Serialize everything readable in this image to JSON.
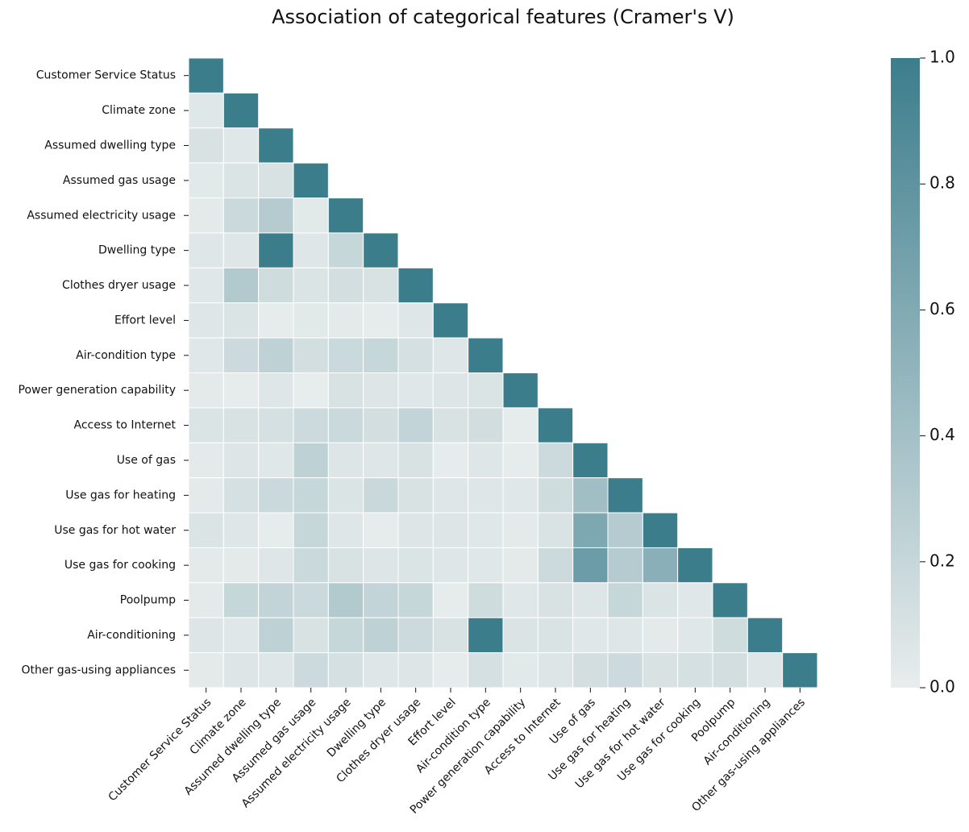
{
  "chart_data": {
    "type": "heatmap",
    "title": "Association of categorical features (Cramer's V)",
    "labels": [
      "Customer Service Status",
      "Climate zone",
      "Assumed dwelling type",
      "Assumed gas usage",
      "Assumed electricity usage",
      "Dwelling type",
      "Clothes dryer usage",
      "Effort level",
      "Air-condition type",
      "Power generation capability",
      "Access to Internet",
      "Use of gas",
      "Use gas for heating",
      "Use gas for hot water",
      "Use gas for cooking",
      "Poolpump",
      "Air-conditioning",
      "Other gas-using appliances"
    ],
    "matrix": [
      [
        1,
        null,
        null,
        null,
        null,
        null,
        null,
        null,
        null,
        null,
        null,
        null,
        null,
        null,
        null,
        null,
        null,
        null
      ],
      [
        0.05,
        1,
        null,
        null,
        null,
        null,
        null,
        null,
        null,
        null,
        null,
        null,
        null,
        null,
        null,
        null,
        null,
        null
      ],
      [
        0.1,
        0.05,
        1,
        null,
        null,
        null,
        null,
        null,
        null,
        null,
        null,
        null,
        null,
        null,
        null,
        null,
        null,
        null
      ],
      [
        0.04,
        0.08,
        0.1,
        1,
        null,
        null,
        null,
        null,
        null,
        null,
        null,
        null,
        null,
        null,
        null,
        null,
        null,
        null
      ],
      [
        0.03,
        0.18,
        0.3,
        0.04,
        1,
        null,
        null,
        null,
        null,
        null,
        null,
        null,
        null,
        null,
        null,
        null,
        null,
        null
      ],
      [
        0.06,
        0.06,
        1,
        0.06,
        0.2,
        1,
        null,
        null,
        null,
        null,
        null,
        null,
        null,
        null,
        null,
        null,
        null,
        null
      ],
      [
        0.05,
        0.32,
        0.15,
        0.08,
        0.13,
        0.1,
        1,
        null,
        null,
        null,
        null,
        null,
        null,
        null,
        null,
        null,
        null,
        null
      ],
      [
        0.06,
        0.08,
        0.02,
        0.04,
        0.03,
        0.02,
        0.06,
        1,
        null,
        null,
        null,
        null,
        null,
        null,
        null,
        null,
        null,
        null
      ],
      [
        0.05,
        0.17,
        0.25,
        0.13,
        0.18,
        0.2,
        0.12,
        0.06,
        1,
        null,
        null,
        null,
        null,
        null,
        null,
        null,
        null,
        null
      ],
      [
        0.03,
        0.02,
        0.06,
        0.01,
        0.1,
        0.07,
        0.05,
        0.07,
        0.08,
        1,
        null,
        null,
        null,
        null,
        null,
        null,
        null,
        null
      ],
      [
        0.08,
        0.1,
        0.12,
        0.17,
        0.18,
        0.13,
        0.22,
        0.1,
        0.14,
        0.02,
        1,
        null,
        null,
        null,
        null,
        null,
        null,
        null
      ],
      [
        0.03,
        0.07,
        0.05,
        0.25,
        0.07,
        0.06,
        0.1,
        0.02,
        0.06,
        0.02,
        0.17,
        1,
        null,
        null,
        null,
        null,
        null,
        null
      ],
      [
        0.03,
        0.12,
        0.18,
        0.2,
        0.08,
        0.19,
        0.1,
        0.06,
        0.06,
        0.05,
        0.15,
        0.42,
        1,
        null,
        null,
        null,
        null,
        null
      ],
      [
        0.08,
        0.06,
        0.02,
        0.2,
        0.06,
        0.02,
        0.07,
        0.07,
        0.05,
        0.03,
        0.09,
        0.62,
        0.3,
        1,
        null,
        null,
        null,
        null
      ],
      [
        0.03,
        0.03,
        0.06,
        0.18,
        0.1,
        0.07,
        0.08,
        0.06,
        0.05,
        0.03,
        0.17,
        0.72,
        0.3,
        0.55,
        1,
        null,
        null,
        null
      ],
      [
        0.03,
        0.2,
        0.22,
        0.18,
        0.32,
        0.22,
        0.2,
        0.02,
        0.15,
        0.05,
        0.1,
        0.07,
        0.2,
        0.08,
        0.05,
        1,
        null,
        null
      ],
      [
        0.07,
        0.05,
        0.25,
        0.1,
        0.2,
        0.25,
        0.17,
        0.1,
        1,
        0.08,
        0.09,
        0.05,
        0.06,
        0.03,
        0.05,
        0.15,
        1,
        null
      ],
      [
        0.03,
        0.07,
        0.06,
        0.17,
        0.12,
        0.06,
        0.07,
        0.02,
        0.12,
        0.04,
        0.07,
        0.13,
        0.17,
        0.1,
        0.12,
        0.13,
        0.06,
        1
      ]
    ],
    "colors": [
      "#e9eded",
      "#3c7d8c"
    ],
    "clim": [
      0,
      1
    ],
    "cticks": [
      {
        "value": 0,
        "label": "0.0"
      },
      0.2,
      0.4,
      0.6,
      0.8,
      {
        "value": 1,
        "label": "1.0"
      }
    ]
  }
}
